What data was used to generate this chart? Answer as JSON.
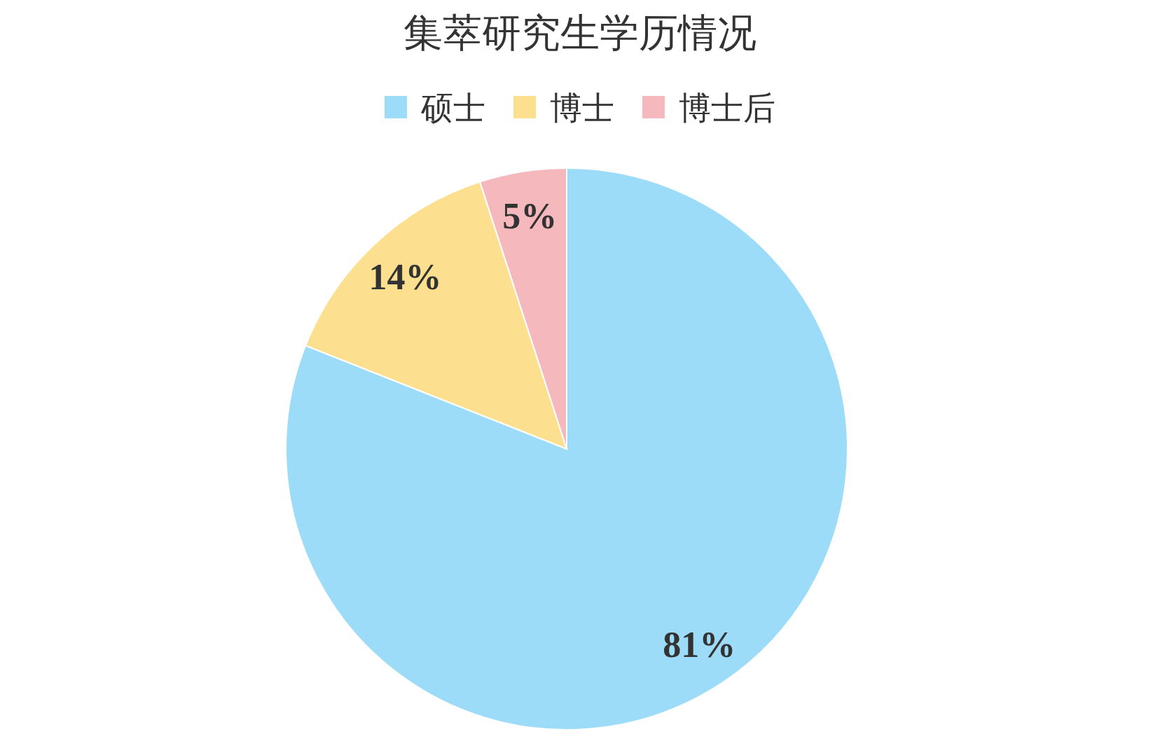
{
  "chart_data": {
    "type": "pie",
    "title": "集萃研究生学历情况",
    "categories": [
      "硕士",
      "博士",
      "博士后"
    ],
    "values": [
      81,
      14,
      5
    ],
    "value_labels": [
      "81%",
      "14%",
      "5%"
    ],
    "colors": [
      "#9cdcf9",
      "#fce08f",
      "#f5b8bd"
    ],
    "legend": "top"
  }
}
